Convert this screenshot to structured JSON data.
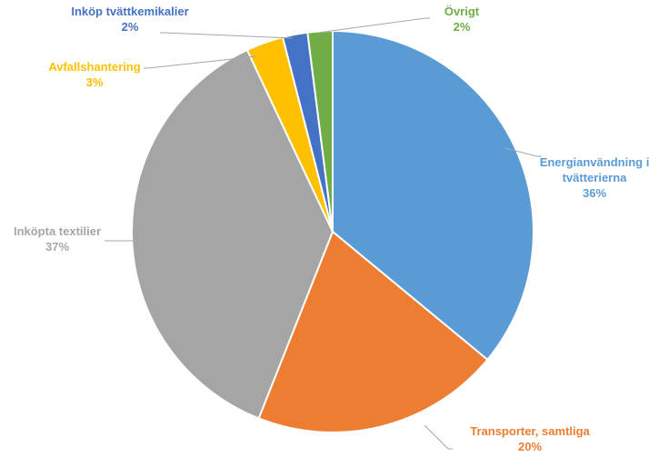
{
  "chart_data": {
    "type": "pie",
    "title": "",
    "slices": [
      {
        "label": "Energianvändning i tvätterierna",
        "label_lines": [
          "Energianvändning i",
          "tvätterierna"
        ],
        "value": 36,
        "pct_label": "36%",
        "color": "#5B9BD5"
      },
      {
        "label": "Transporter, samtliga",
        "label_lines": [
          "Transporter, samtliga"
        ],
        "value": 20,
        "pct_label": "20%",
        "color": "#ED7D31"
      },
      {
        "label": "Inköpta textilier",
        "label_lines": [
          "Inköpta textilier"
        ],
        "value": 37,
        "pct_label": "37%",
        "color": "#A5A5A5"
      },
      {
        "label": "Avfallshantering",
        "label_lines": [
          "Avfallshantering"
        ],
        "value": 3,
        "pct_label": "3%",
        "color": "#FFC000"
      },
      {
        "label": "Inköp tvättkemikalier",
        "label_lines": [
          "Inköp tvättkemikalier"
        ],
        "value": 2,
        "pct_label": "2%",
        "color": "#4472C4"
      },
      {
        "label": "Övrigt",
        "label_lines": [
          "Övrigt"
        ],
        "value": 2,
        "pct_label": "2%",
        "color": "#70AD47"
      }
    ],
    "legend": "none",
    "label_placement": "outside with leader lines"
  }
}
